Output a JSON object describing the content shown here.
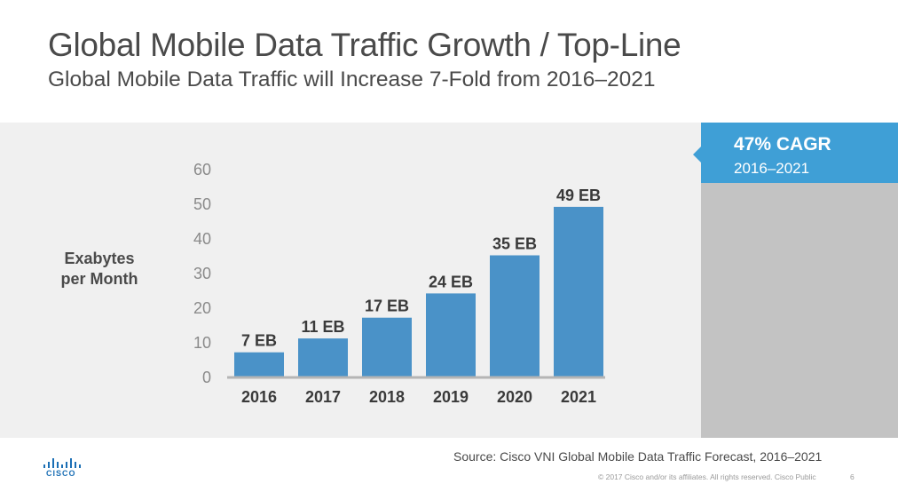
{
  "title": "Global Mobile Data Traffic Growth / Top-Line",
  "subtitle": "Global Mobile Data Traffic will Increase 7-Fold from 2016–2021",
  "cagr": {
    "value": "47% CAGR",
    "period": "2016–2021"
  },
  "source": "Source: Cisco VNI Global Mobile Data Traffic Forecast, 2016–2021",
  "footer": {
    "copyright": "© 2017  Cisco and/or its affiliates. All rights reserved.   Cisco Public",
    "page": "6"
  },
  "logo": {
    "wordmark": "CISCO"
  },
  "colors": {
    "bar": "#4a92c8",
    "accent": "#3f9fd6",
    "panel": "#f0f0f0",
    "cagr_column": "#c3c3c3",
    "text": "#4a4a4a"
  },
  "chart_data": {
    "type": "bar",
    "title": "",
    "ylabel_lines": [
      "Exabytes",
      "per Month"
    ],
    "xlabel": "",
    "categories": [
      "2016",
      "2017",
      "2018",
      "2019",
      "2020",
      "2021"
    ],
    "values": [
      7,
      11,
      17,
      24,
      35,
      49
    ],
    "data_labels": [
      "7 EB",
      "11 EB",
      "17 EB",
      "24 EB",
      "35 EB",
      "49 EB"
    ],
    "ylim": [
      0,
      60
    ],
    "yticks": [
      0,
      10,
      20,
      30,
      40,
      50,
      60
    ],
    "grid": false,
    "legend": "none"
  }
}
